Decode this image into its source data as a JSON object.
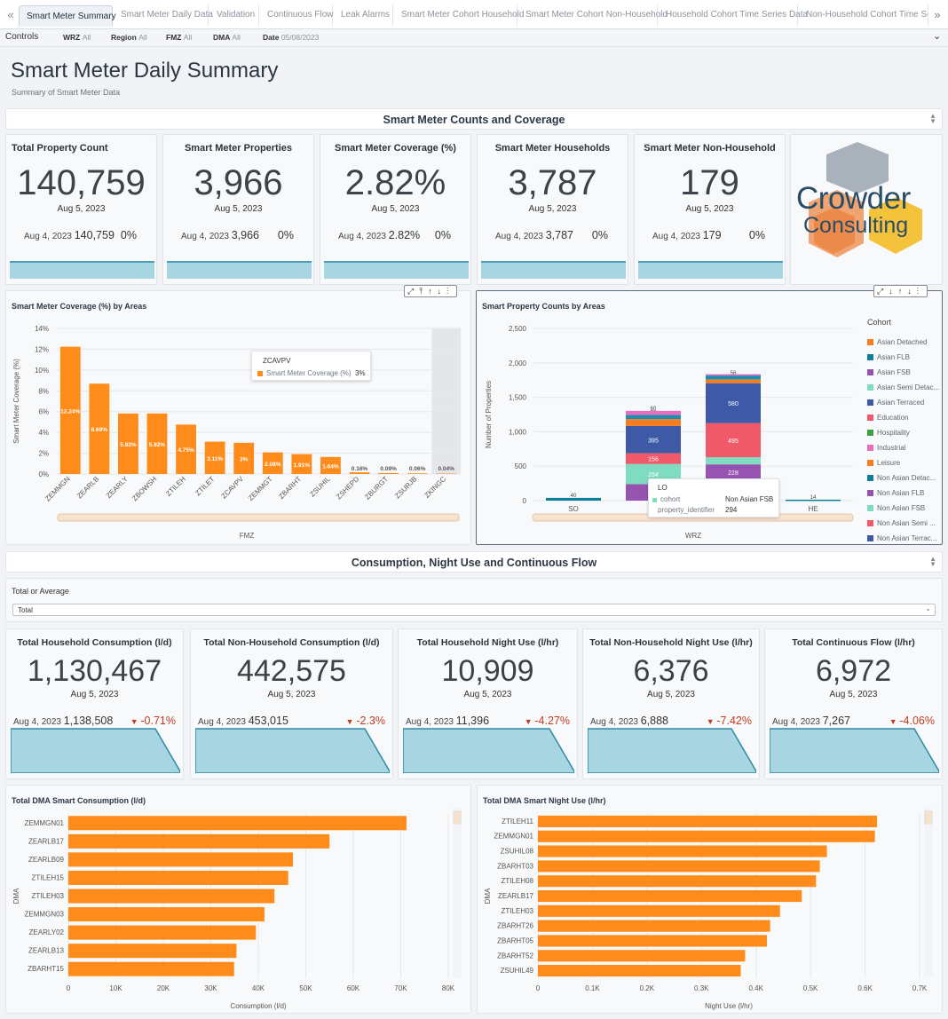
{
  "tabs": [
    "Smart Meter Summary",
    "Smart Meter Daily Data",
    "Validation",
    "Continuous Flow",
    "Leak Alarms",
    "Smart Meter Cohort Household",
    "Smart Meter Cohort Non-Household",
    "Household Cohort Time Series Data",
    "Non-Household Cohort Time Series"
  ],
  "controls": {
    "label": "Controls",
    "wrz": "WRZ",
    "wrz_val": "All",
    "region": "Region",
    "region_val": "All",
    "fmz": "FMZ",
    "fmz_val": "All",
    "dma": "DMA",
    "dma_val": "All",
    "date": "Date",
    "date_val": "05/08/2023"
  },
  "header": {
    "title": "Smart Meter Daily Summary",
    "subtitle": "Summary of Smart Meter Data"
  },
  "section1": "Smart Meter Counts and Coverage",
  "section2": "Consumption, Night Use and Continuous Flow",
  "kpis1": [
    {
      "title": "Total Property Count",
      "value": "140,759",
      "date": "Aug 5, 2023",
      "prev_date": "Aug 4, 2023",
      "prev_value": "140,759",
      "delta": "0%"
    },
    {
      "title": "Smart Meter Properties",
      "value": "3,966",
      "date": "Aug 5, 2023",
      "prev_date": "Aug 4, 2023",
      "prev_value": "3,966",
      "delta": "0%"
    },
    {
      "title": "Smart Meter Coverage (%)",
      "value": "2.82%",
      "date": "Aug 5, 2023",
      "prev_date": "Aug 4, 2023",
      "prev_value": "2.82%",
      "delta": "0%"
    },
    {
      "title": "Smart Meter Households",
      "value": "3,787",
      "date": "Aug 5, 2023",
      "prev_date": "Aug 4, 2023",
      "prev_value": "3,787",
      "delta": "0%"
    },
    {
      "title": "Smart Meter Non-Household",
      "value": "179",
      "date": "Aug 5, 2023",
      "prev_date": "Aug 4, 2023",
      "prev_value": "179",
      "delta": "0%"
    }
  ],
  "logo": {
    "line1": "Crowder",
    "line2": "Consulting"
  },
  "filter": {
    "label": "Total or Average",
    "value": "Total"
  },
  "kpis2": [
    {
      "title": "Total Household Consumption (l/d)",
      "value": "1,130,467",
      "date": "Aug 5, 2023",
      "prev_date": "Aug 4, 2023",
      "prev_value": "1,138,508",
      "delta": "-0.71%"
    },
    {
      "title": "Total Non-Household Consumption (l/d)",
      "value": "442,575",
      "date": "Aug 5, 2023",
      "prev_date": "Aug 4, 2023",
      "prev_value": "453,015",
      "delta": "-2.3%"
    },
    {
      "title": "Total Household Night Use (l/hr)",
      "value": "10,909",
      "date": "Aug 5, 2023",
      "prev_date": "Aug 4, 2023",
      "prev_value": "11,396",
      "delta": "-4.27%"
    },
    {
      "title": "Total Non-Household Night Use (l/hr)",
      "value": "6,376",
      "date": "Aug 5, 2023",
      "prev_date": "Aug 4, 2023",
      "prev_value": "6,888",
      "delta": "-7.42%"
    },
    {
      "title": "Total Continuous Flow (l/hr)",
      "value": "6,972",
      "date": "Aug 5, 2023",
      "prev_date": "Aug 4, 2023",
      "prev_value": "7,267",
      "delta": "-4.06%"
    }
  ],
  "colors": {
    "orange": "#ff8c1a",
    "blue": "#4a9fb5",
    "red": "#c23c1f"
  },
  "chart_data": [
    {
      "type": "bar",
      "title": "Smart Meter Coverage (%) by Areas",
      "xlabel": "FMZ",
      "ylabel": "Smart Meter Coverage (%)",
      "ylim": [
        0,
        14
      ],
      "categories": [
        "ZEMMGN",
        "ZEARLB",
        "ZEARLY",
        "ZBOWSH",
        "ZTILEH",
        "ZTILET",
        "ZCAVPV",
        "ZEMMGT",
        "ZBARHT",
        "ZSUHIL",
        "ZSHEPD",
        "ZBURGT",
        "ZSURJB",
        "ZKINGC"
      ],
      "values": [
        12.24,
        8.69,
        5.82,
        5.82,
        4.75,
        3.11,
        3.0,
        2.08,
        1.91,
        1.64,
        0.16,
        0.09,
        0.06,
        0.04
      ],
      "labels": [
        "12.24%",
        "8.69%",
        "5.82%",
        "5.82%",
        "4.75%",
        "3.11%",
        "3%",
        "2.08%",
        "1.91%",
        "1.64%",
        "0.16%",
        "0.09%",
        "0.06%",
        "0.04%"
      ],
      "yticks": [
        "0%",
        "2%",
        "4%",
        "6%",
        "8%",
        "10%",
        "12%",
        "14%"
      ],
      "tooltip": {
        "title": "ZCAVPV",
        "series": "Smart Meter Coverage (%)",
        "value": "3%"
      }
    },
    {
      "type": "bar",
      "stacked": true,
      "title": "Smart Property Counts by Areas",
      "xlabel": "WRZ",
      "ylabel": "Number of Properties",
      "ylim": [
        0,
        2500
      ],
      "categories": [
        "SO",
        "LO",
        "NO",
        "HE"
      ],
      "yticks": [
        "0",
        "500",
        "1,000",
        "1,500",
        "2,000",
        "2,500"
      ],
      "series": [
        {
          "name": "Non Asian Detached",
          "color": "#0f7f99",
          "values": [
            40,
            0,
            298,
            14
          ]
        },
        {
          "name": "Non Asian FLB",
          "color": "#9653b0",
          "values": [
            0,
            238,
            228,
            0
          ]
        },
        {
          "name": "Non Asian FSB",
          "color": "#7fdcc0",
          "values": [
            0,
            294,
            104,
            0
          ]
        },
        {
          "name": "Non Asian Semi-Detached",
          "color": "#f0596a",
          "values": [
            0,
            156,
            495,
            0
          ]
        },
        {
          "name": "Non Asian Terraced",
          "color": "#3e5aa6",
          "values": [
            0,
            395,
            580,
            0
          ]
        },
        {
          "name": "Leisure",
          "color": "#f57c1f",
          "values": [
            0,
            101,
            55,
            0
          ]
        },
        {
          "name": "Asian Detached",
          "color": "#1d8fb5",
          "values": [
            0,
            59,
            56,
            0
          ]
        },
        {
          "name": "Industrial",
          "color": "#e86fbf",
          "values": [
            0,
            60,
            20,
            0
          ]
        }
      ],
      "bar_labels": [
        [
          "40",
          "",
          "",
          "",
          "",
          "",
          "",
          ""
        ],
        [
          "",
          "238",
          "294",
          "156",
          "395",
          "101",
          "59",
          "60"
        ],
        [
          "298",
          "228",
          "104",
          "495",
          "580",
          "55",
          "56",
          ""
        ],
        [
          "14",
          "",
          "",
          "",
          "",
          "",
          "",
          ""
        ]
      ],
      "legend_title": "Cohort",
      "legend": [
        "Asian Detached",
        "Asian FLB",
        "Asian FSB",
        "Asian Semi Detac...",
        "Asian Terraced",
        "Education",
        "Hospitality",
        "Industrial",
        "Leisure",
        "Non Asian Detac...",
        "Non Asian FLB",
        "Non Asian FSB",
        "Non Asian Semi ...",
        "Non Asian Terrac..."
      ],
      "legend_colors": [
        "#f57c1f",
        "#0f7f99",
        "#9653b0",
        "#7fdcc0",
        "#3e5aa6",
        "#f0596a",
        "#3fa043",
        "#e86fbf",
        "#f57c1f",
        "#0f7f99",
        "#9653b0",
        "#7fdcc0",
        "#f0596a",
        "#3e5aa6"
      ],
      "tooltip": {
        "title": "LO",
        "k1": "cohort",
        "v1": "Non Asian FSB",
        "k2": "property_identifier",
        "v2": "294"
      }
    },
    {
      "type": "bar",
      "orientation": "horizontal",
      "title": "Total DMA Smart Consumption (l/d)",
      "xlabel": "Consumption (l/d)",
      "ylabel": "DMA",
      "xlim": [
        0,
        80000
      ],
      "categories": [
        "ZEMMGN01",
        "ZEARLB17",
        "ZEARLB09",
        "ZTILEH15",
        "ZTILEH03",
        "ZEMMGN03",
        "ZEARLY02",
        "ZEARLB13",
        "ZBARHT15"
      ],
      "values": [
        71200,
        55000,
        47300,
        46300,
        43400,
        41300,
        39500,
        35400,
        34900
      ],
      "xticks": [
        "0",
        "10K",
        "20K",
        "30K",
        "40K",
        "50K",
        "60K",
        "70K",
        "80K"
      ]
    },
    {
      "type": "bar",
      "orientation": "horizontal",
      "title": "Total DMA Smart Night Use (l/hr)",
      "xlabel": "Night Use (l/hr)",
      "ylabel": "DMA",
      "xlim": [
        0,
        0.7
      ],
      "categories": [
        "ZTILEH11",
        "ZEMMGN01",
        "ZSUHIL08",
        "ZBARHT03",
        "ZTILEH08",
        "ZEARLB17",
        "ZTILEH03",
        "ZBARHT26",
        "ZBARHT05",
        "ZBARHT52",
        "ZSUHIL49"
      ],
      "values": [
        0.622,
        0.618,
        0.53,
        0.517,
        0.51,
        0.484,
        0.444,
        0.426,
        0.42,
        0.38,
        0.372
      ],
      "xticks": [
        "0",
        "0.1K",
        "0.2K",
        "0.3K",
        "0.4K",
        "0.5K",
        "0.6K",
        "0.7K"
      ]
    }
  ]
}
